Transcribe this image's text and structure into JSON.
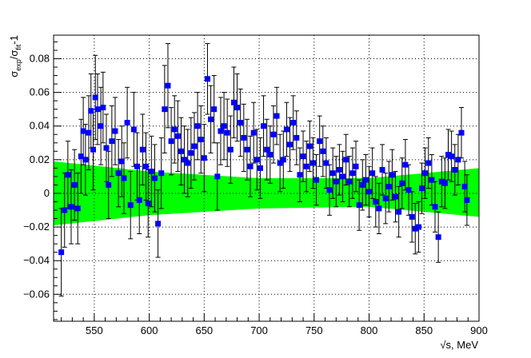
{
  "chart_data": {
    "type": "scatter",
    "xlabel": "√s, MeV",
    "ylabel": "σexp/σfit-1",
    "ylabel_parts": {
      "main": "σ",
      "sub1": "exp",
      "slash": "/σ",
      "sub2": "fit",
      "tail": "-1"
    },
    "xlim": [
      513,
      900
    ],
    "ylim": [
      -0.076,
      0.094
    ],
    "x_ticks": [
      550,
      600,
      650,
      700,
      750,
      800,
      850,
      900
    ],
    "y_ticks": [
      -0.06,
      -0.04,
      -0.02,
      0,
      0.02,
      0.04,
      0.06,
      0.08
    ],
    "y_tick_labels": [
      "−0.06",
      "−0.04",
      "−0.02",
      "0",
      "0.02",
      "0.04",
      "0.06",
      "0.08"
    ],
    "grid": true,
    "colors": {
      "points": "#0000ff",
      "band": "#00ff00",
      "error_bars": "#000000",
      "grid": "#000000"
    },
    "band": {
      "x": [
        513,
        600,
        700,
        800,
        900
      ],
      "lower": [
        -0.019,
        -0.013,
        -0.009,
        -0.008,
        -0.014
      ],
      "upper": [
        0.019,
        0.013,
        0.009,
        0.009,
        0.015
      ]
    },
    "series": [
      {
        "x": [
          520,
          523,
          526,
          529,
          532,
          535,
          538,
          540,
          542,
          545,
          547,
          549,
          551,
          553,
          556,
          558,
          561,
          563,
          566,
          569,
          572,
          575,
          577,
          580,
          583,
          586,
          589,
          591,
          594,
          597,
          599,
          602,
          605,
          608,
          611,
          614,
          617,
          620,
          623,
          626,
          629,
          632,
          635,
          638,
          641,
          644,
          647,
          650,
          653,
          656,
          659,
          662,
          665,
          668,
          671,
          674,
          677,
          680,
          683,
          686,
          689,
          692,
          695,
          698,
          701,
          704,
          707,
          710,
          713,
          716,
          719,
          722,
          725,
          728,
          731,
          734,
          737,
          740,
          743,
          746,
          749,
          752,
          755,
          758,
          761,
          764,
          767,
          770,
          773,
          776,
          779,
          782,
          785,
          788,
          791,
          794,
          797,
          800,
          803,
          806,
          809,
          812,
          815,
          818,
          821,
          824,
          827,
          830,
          833,
          836,
          839,
          842,
          845,
          848,
          851,
          854,
          857,
          860,
          863,
          866,
          869,
          872,
          875,
          878,
          881,
          884,
          887,
          889
        ],
        "y": [
          -0.035,
          -0.01,
          0.011,
          -0.008,
          0.005,
          -0.009,
          0.022,
          0.037,
          0.02,
          0.036,
          0.049,
          0.026,
          0.057,
          0.05,
          0.04,
          0.051,
          0.027,
          0.005,
          0.031,
          0.037,
          0.012,
          0.019,
          0.009,
          0.042,
          -0.007,
          0.038,
          0.016,
          -0.004,
          0.026,
          0.016,
          -0.006,
          0.013,
          0.009,
          -0.018,
          0.012,
          0.05,
          0.064,
          0.031,
          0.038,
          0.034,
          0.025,
          0.02,
          0.018,
          0.024,
          0.028,
          0.04,
          0.032,
          0.021,
          0.068,
          0.044,
          0.05,
          0.01,
          0.037,
          0.04,
          0.036,
          0.026,
          0.054,
          0.051,
          0.042,
          0.033,
          0.026,
          0.016,
          0.036,
          0.02,
          0.015,
          0.04,
          0.026,
          0.023,
          0.035,
          0.046,
          0.018,
          0.02,
          0.038,
          0.029,
          0.042,
          0.033,
          0.011,
          0.022,
          0.016,
          0.028,
          0.018,
          0.008,
          0.031,
          0.025,
          0.018,
          0.002,
          0.012,
          0.007,
          0.014,
          0.01,
          0.02,
          0.007,
          0.012,
          0.016,
          -0.007,
          0.005,
          0.008,
          0.001,
          0.012,
          -0.005,
          -0.009,
          0.014,
          -0.003,
          0.004,
          0.011,
          -0.002,
          -0.011,
          0.006,
          0.017,
          0.002,
          -0.014,
          -0.021,
          -0.02,
          0.003,
          0.012,
          0.018,
          0.008,
          -0.008,
          -0.026,
          0.007,
          0.006,
          0.023,
          0.022,
          0.014,
          0.02,
          0.036,
          0.004,
          -0.004
        ],
        "err": [
          0.026,
          0.022,
          0.02,
          0.022,
          0.021,
          0.021,
          0.022,
          0.02,
          0.021,
          0.022,
          0.022,
          0.024,
          0.025,
          0.021,
          0.023,
          0.021,
          0.02,
          0.02,
          0.021,
          0.02,
          0.02,
          0.021,
          0.021,
          0.021,
          0.02,
          0.022,
          0.02,
          0.02,
          0.021,
          0.02,
          0.02,
          0.021,
          0.02,
          0.02,
          0.021,
          0.026,
          0.025,
          0.02,
          0.02,
          0.021,
          0.02,
          0.02,
          0.02,
          0.021,
          0.02,
          0.02,
          0.02,
          0.02,
          0.021,
          0.02,
          0.02,
          0.02,
          0.02,
          0.02,
          0.02,
          0.02,
          0.021,
          0.02,
          0.02,
          0.02,
          0.018,
          0.018,
          0.018,
          0.018,
          0.018,
          0.018,
          0.018,
          0.017,
          0.017,
          0.017,
          0.017,
          0.017,
          0.016,
          0.016,
          0.016,
          0.016,
          0.016,
          0.015,
          0.015,
          0.015,
          0.015,
          0.015,
          0.015,
          0.015,
          0.015,
          0.015,
          0.015,
          0.015,
          0.015,
          0.015,
          0.015,
          0.015,
          0.015,
          0.015,
          0.015,
          0.015,
          0.015,
          0.015,
          0.015,
          0.015,
          0.015,
          0.015,
          0.015,
          0.015,
          0.015,
          0.015,
          0.015,
          0.015,
          0.015,
          0.015,
          0.015,
          0.015,
          0.015,
          0.015,
          0.015,
          0.015,
          0.015,
          0.015,
          0.015,
          0.015,
          0.015,
          0.015,
          0.015,
          0.015,
          0.015,
          0.015,
          0.015,
          0.015
        ]
      }
    ]
  }
}
